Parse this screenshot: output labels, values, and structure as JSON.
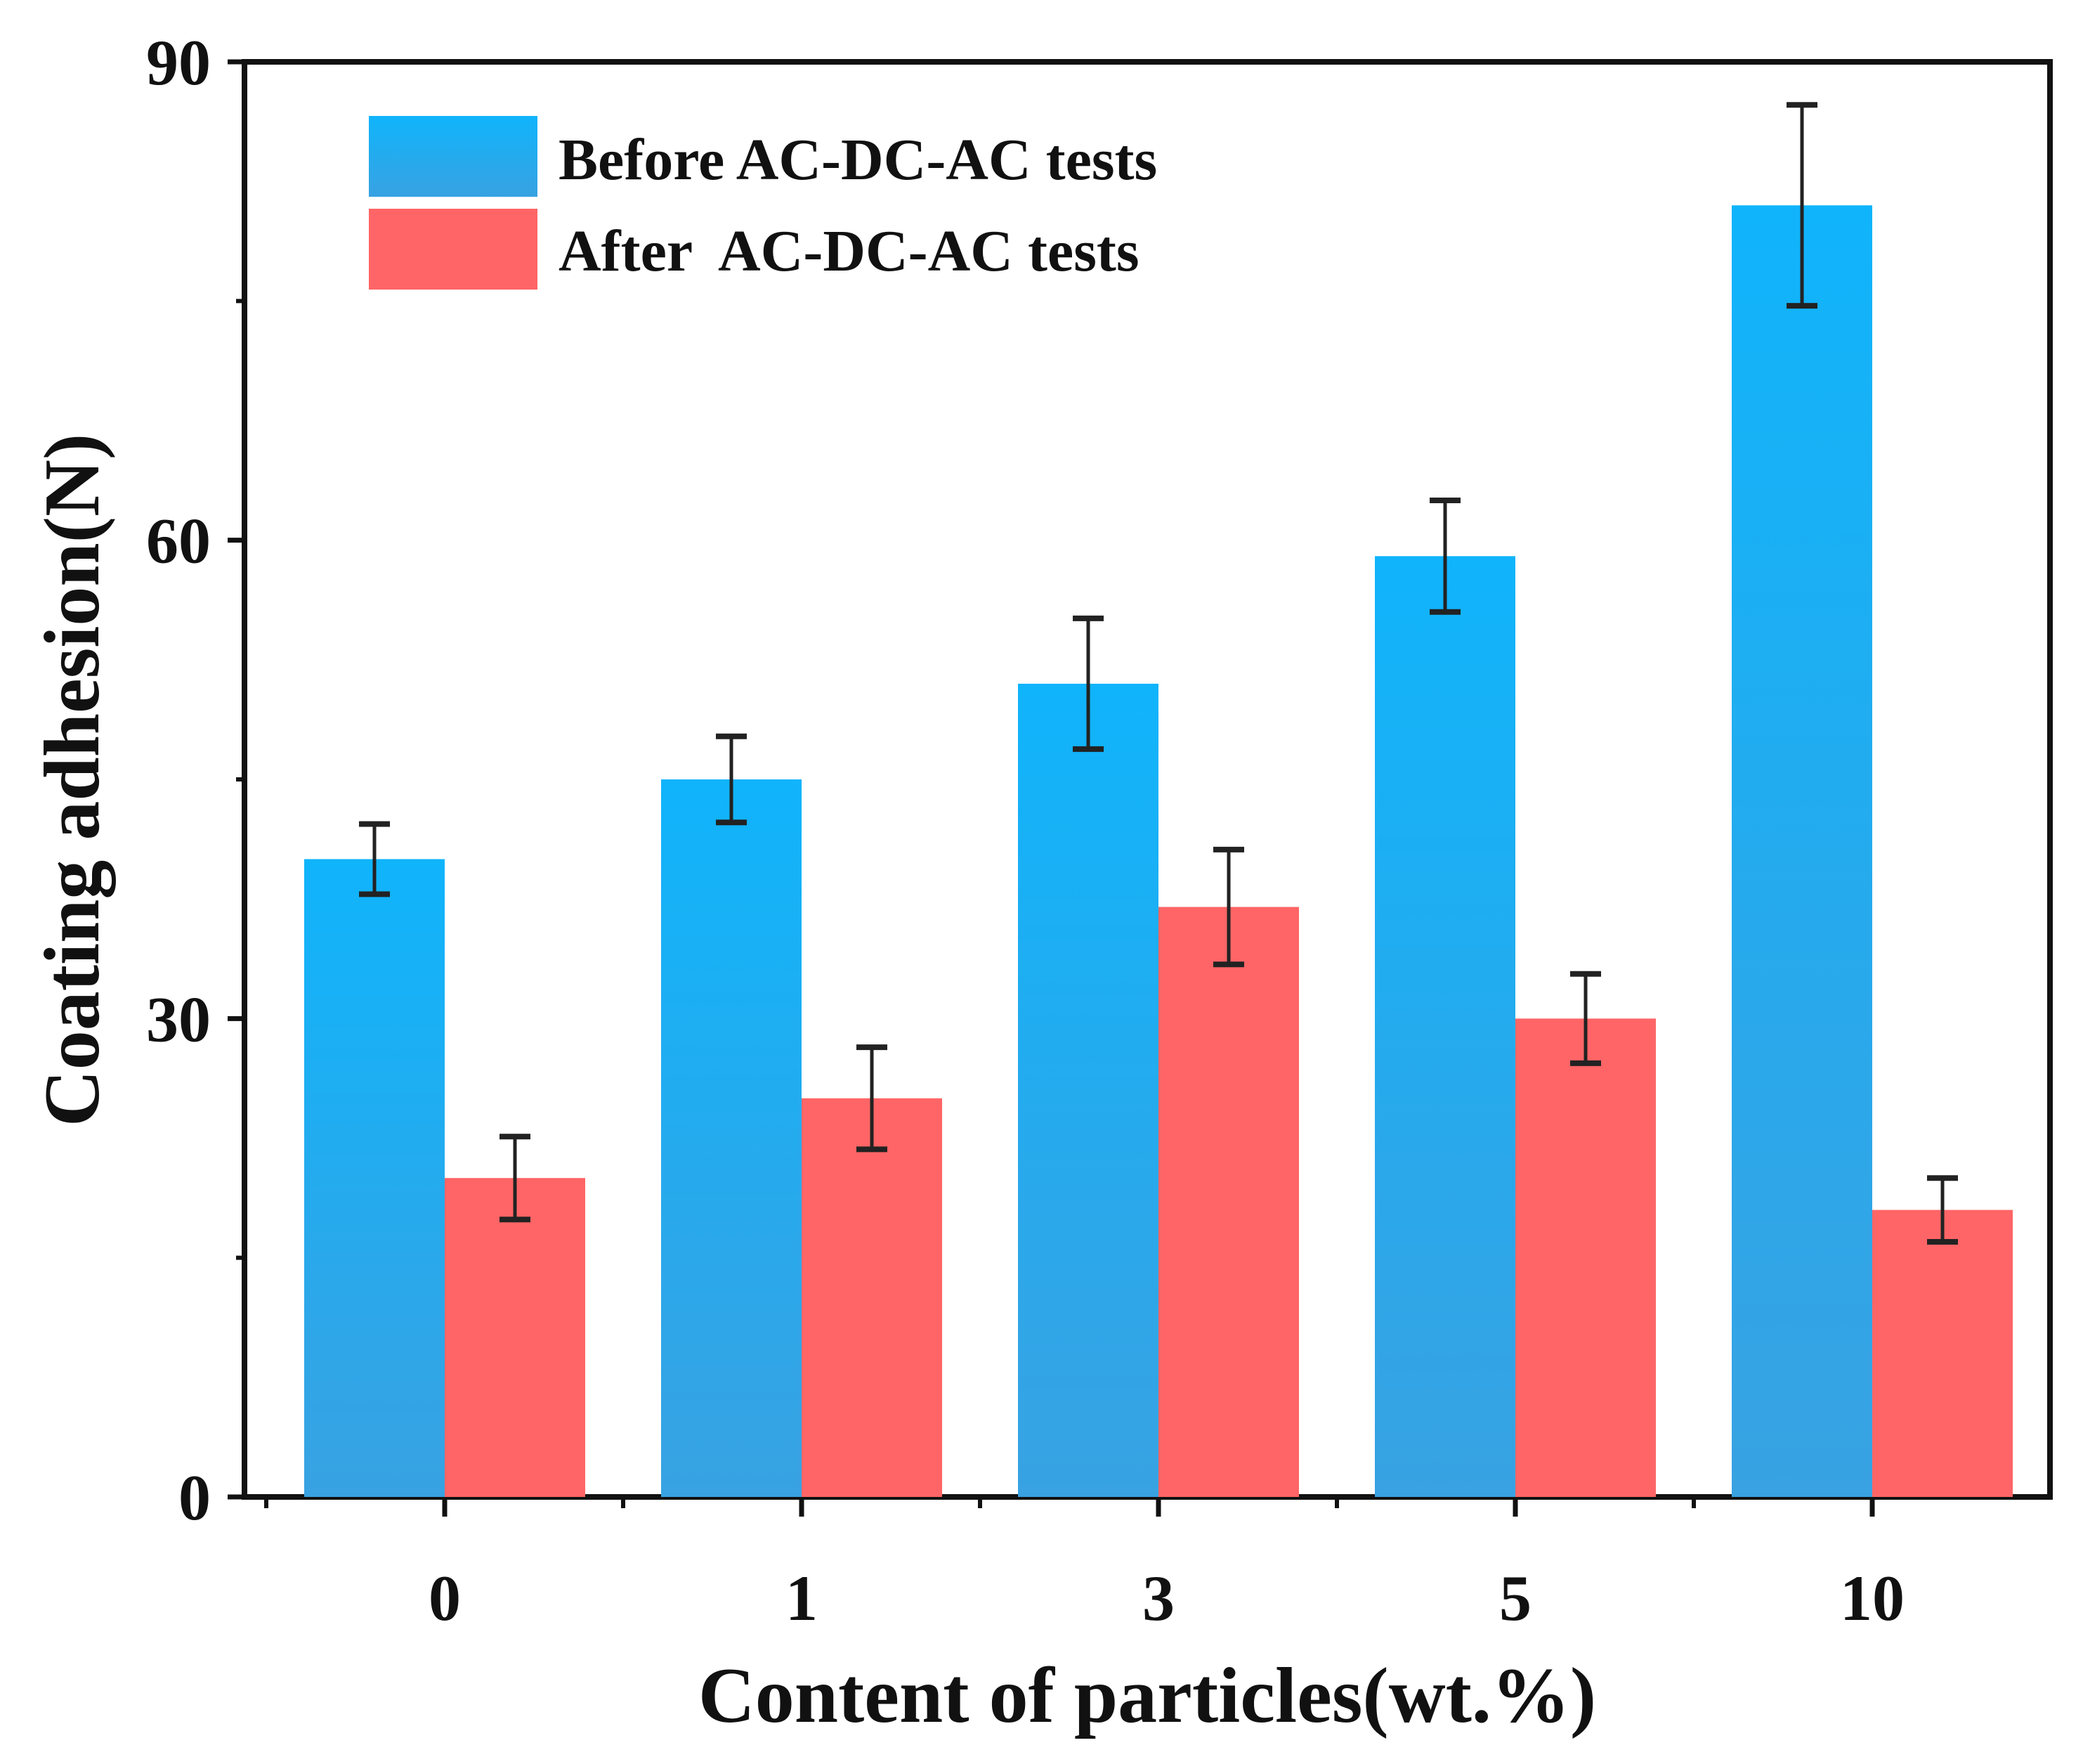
{
  "chart_data": {
    "type": "bar",
    "title": "",
    "xlabel": "Content of particles(wt.%)",
    "ylabel": "Coating adhesion(N)",
    "categories": [
      "0",
      "1",
      "3",
      "5",
      "10"
    ],
    "ylim": [
      0,
      90
    ],
    "yticks": [
      "0",
      "30",
      "60",
      "90"
    ],
    "ytick_values": [
      0,
      30,
      60,
      90
    ],
    "legend_position": "top-left",
    "grid": false,
    "series": [
      {
        "name": "Before AC-DC-AC tests",
        "color_top": "#10B4FB",
        "color_bottom": "#38A2E2",
        "values": [
          40,
          45,
          51,
          59,
          81
        ],
        "errors": [
          2.2,
          2.7,
          4.1,
          3.5,
          6.3
        ]
      },
      {
        "name": "After  AC-DC-AC tests",
        "color_top": "#FF6566",
        "color_bottom": "#FF6566",
        "values": [
          20,
          25,
          37,
          30,
          18
        ],
        "errors": [
          2.6,
          3.2,
          3.6,
          2.8,
          2.0
        ]
      }
    ]
  }
}
